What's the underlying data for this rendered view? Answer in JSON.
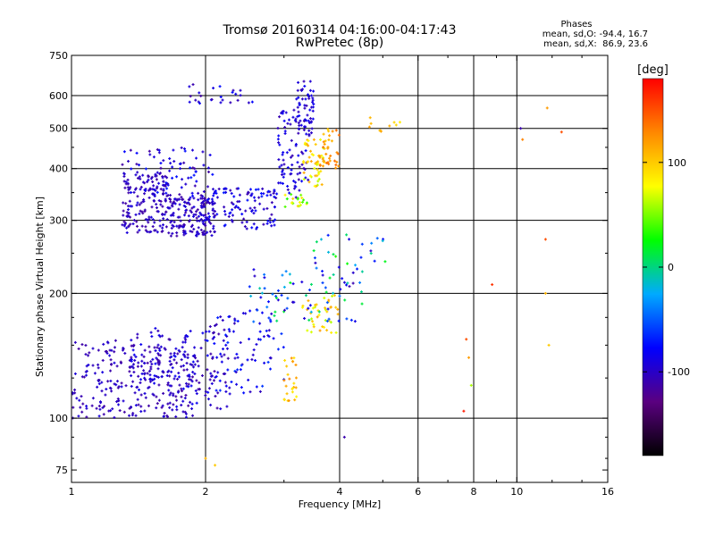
{
  "header": {
    "title_line1": "Tromsø 20160314 04:16:00-04:17:43",
    "title_line2": "RwPretec (8p)",
    "phases_label": "Phases",
    "stats_o": "mean, sd,O: -94.4, 16.7",
    "stats_x": "mean, sd,X:  86.9, 23.6"
  },
  "colorbar": {
    "unit_label": "[deg]",
    "ticks": [
      {
        "label": "100",
        "value": 100
      },
      {
        "label": "0",
        "value": 0
      },
      {
        "label": "-100",
        "value": -100
      }
    ],
    "range": [
      -180,
      180
    ],
    "colors": [
      "#000000",
      "#5a0080",
      "#0000ff",
      "#00aaff",
      "#00ff00",
      "#ffff00",
      "#ff8800",
      "#ff0000"
    ]
  },
  "chart_data": {
    "type": "scatter",
    "xlabel": "Frequency [MHz]",
    "ylabel": "Stationary phase Virtual Height [km]",
    "xscale": "log",
    "yscale": "log",
    "xlim": [
      1,
      16
    ],
    "ylim": [
      70,
      750
    ],
    "x_ticks": [
      {
        "label": "1",
        "value": 1
      },
      {
        "label": "2",
        "value": 2
      },
      {
        "label": "4",
        "value": 4
      },
      {
        "label": "6",
        "value": 6
      },
      {
        "label": "8",
        "value": 8
      },
      {
        "label": "10",
        "value": 10
      },
      {
        "label": "16",
        "value": 16
      }
    ],
    "x_grid": [
      2,
      4,
      6,
      8,
      10
    ],
    "y_ticks": [
      {
        "label": "75",
        "value": 75
      },
      {
        "label": "100",
        "value": 100
      },
      {
        "label": "200",
        "value": 200
      },
      {
        "label": "300",
        "value": 300
      },
      {
        "label": "400",
        "value": 400
      },
      {
        "label": "500",
        "value": 500
      },
      {
        "label": "600",
        "value": 600
      },
      {
        "label": "750",
        "value": 750
      }
    ],
    "y_grid": [
      100,
      200,
      300,
      400,
      500,
      600
    ],
    "grid": true,
    "color_encodes": "phase [deg]",
    "clusters": [
      {
        "x": [
          1.0,
          1.9
        ],
        "y": [
          100,
          155
        ],
        "phase": [
          -115,
          -90
        ],
        "n": 260
      },
      {
        "x": [
          1.35,
          2.3
        ],
        "y": [
          105,
          165
        ],
        "phase": [
          -115,
          -80
        ],
        "n": 160
      },
      {
        "x": [
          2.0,
          3.0
        ],
        "y": [
          115,
          180
        ],
        "phase": [
          -110,
          -60
        ],
        "n": 80
      },
      {
        "x": [
          1.3,
          1.65
        ],
        "y": [
          280,
          390
        ],
        "phase": [
          -115,
          -90
        ],
        "n": 160
      },
      {
        "x": [
          1.65,
          2.1
        ],
        "y": [
          275,
          340
        ],
        "phase": [
          -115,
          -90
        ],
        "n": 160
      },
      {
        "x": [
          2.0,
          2.9
        ],
        "y": [
          285,
          360
        ],
        "phase": [
          -110,
          -70
        ],
        "n": 110
      },
      {
        "x": [
          1.3,
          2.1
        ],
        "y": [
          340,
          450
        ],
        "phase": [
          -115,
          -70
        ],
        "n": 90
      },
      {
        "x": [
          2.9,
          3.4
        ],
        "y": [
          340,
          560
        ],
        "phase": [
          -110,
          -80
        ],
        "n": 80
      },
      {
        "x": [
          3.2,
          3.5
        ],
        "y": [
          480,
          650
        ],
        "phase": [
          -110,
          -80
        ],
        "n": 60
      },
      {
        "x": [
          3.3,
          3.7
        ],
        "y": [
          360,
          470
        ],
        "phase": [
          60,
          120
        ],
        "n": 50
      },
      {
        "x": [
          3.6,
          4.0
        ],
        "y": [
          400,
          500
        ],
        "phase": [
          100,
          140
        ],
        "n": 35
      },
      {
        "x": [
          3.0,
          3.4
        ],
        "y": [
          320,
          350
        ],
        "phase": [
          30,
          100
        ],
        "n": 20
      },
      {
        "x": [
          1.8,
          2.6
        ],
        "y": [
          570,
          640
        ],
        "phase": [
          -115,
          -70
        ],
        "n": 25
      },
      {
        "x": [
          3.0,
          3.2
        ],
        "y": [
          110,
          140
        ],
        "phase": [
          80,
          130
        ],
        "n": 25
      },
      {
        "x": [
          3.3,
          4.0
        ],
        "y": [
          160,
          200
        ],
        "phase": [
          60,
          120
        ],
        "n": 40
      },
      {
        "x": [
          2.5,
          4.5
        ],
        "y": [
          170,
          230
        ],
        "phase": [
          -110,
          20
        ],
        "n": 80
      },
      {
        "x": [
          3.5,
          5.3
        ],
        "y": [
          230,
          280
        ],
        "phase": [
          -110,
          40
        ],
        "n": 25
      },
      {
        "x": [
          4.5,
          5.5
        ],
        "y": [
          490,
          540
        ],
        "phase": [
          80,
          140
        ],
        "n": 10
      }
    ],
    "sparse_points": [
      {
        "x": 7.6,
        "y": 104,
        "phase": 170
      },
      {
        "x": 7.7,
        "y": 155,
        "phase": 150
      },
      {
        "x": 7.8,
        "y": 140,
        "phase": 120
      },
      {
        "x": 7.9,
        "y": 120,
        "phase": 60
      },
      {
        "x": 8.8,
        "y": 210,
        "phase": 160
      },
      {
        "x": 10.2,
        "y": 500,
        "phase": -110
      },
      {
        "x": 10.3,
        "y": 470,
        "phase": 130
      },
      {
        "x": 11.6,
        "y": 270,
        "phase": 150
      },
      {
        "x": 11.6,
        "y": 200,
        "phase": 110
      },
      {
        "x": 11.7,
        "y": 560,
        "phase": 120
      },
      {
        "x": 11.8,
        "y": 150,
        "phase": 100
      },
      {
        "x": 12.6,
        "y": 490,
        "phase": 150
      },
      {
        "x": 4.1,
        "y": 90,
        "phase": -110
      },
      {
        "x": 2.0,
        "y": 80,
        "phase": 110
      },
      {
        "x": 2.1,
        "y": 77,
        "phase": 100
      }
    ]
  }
}
